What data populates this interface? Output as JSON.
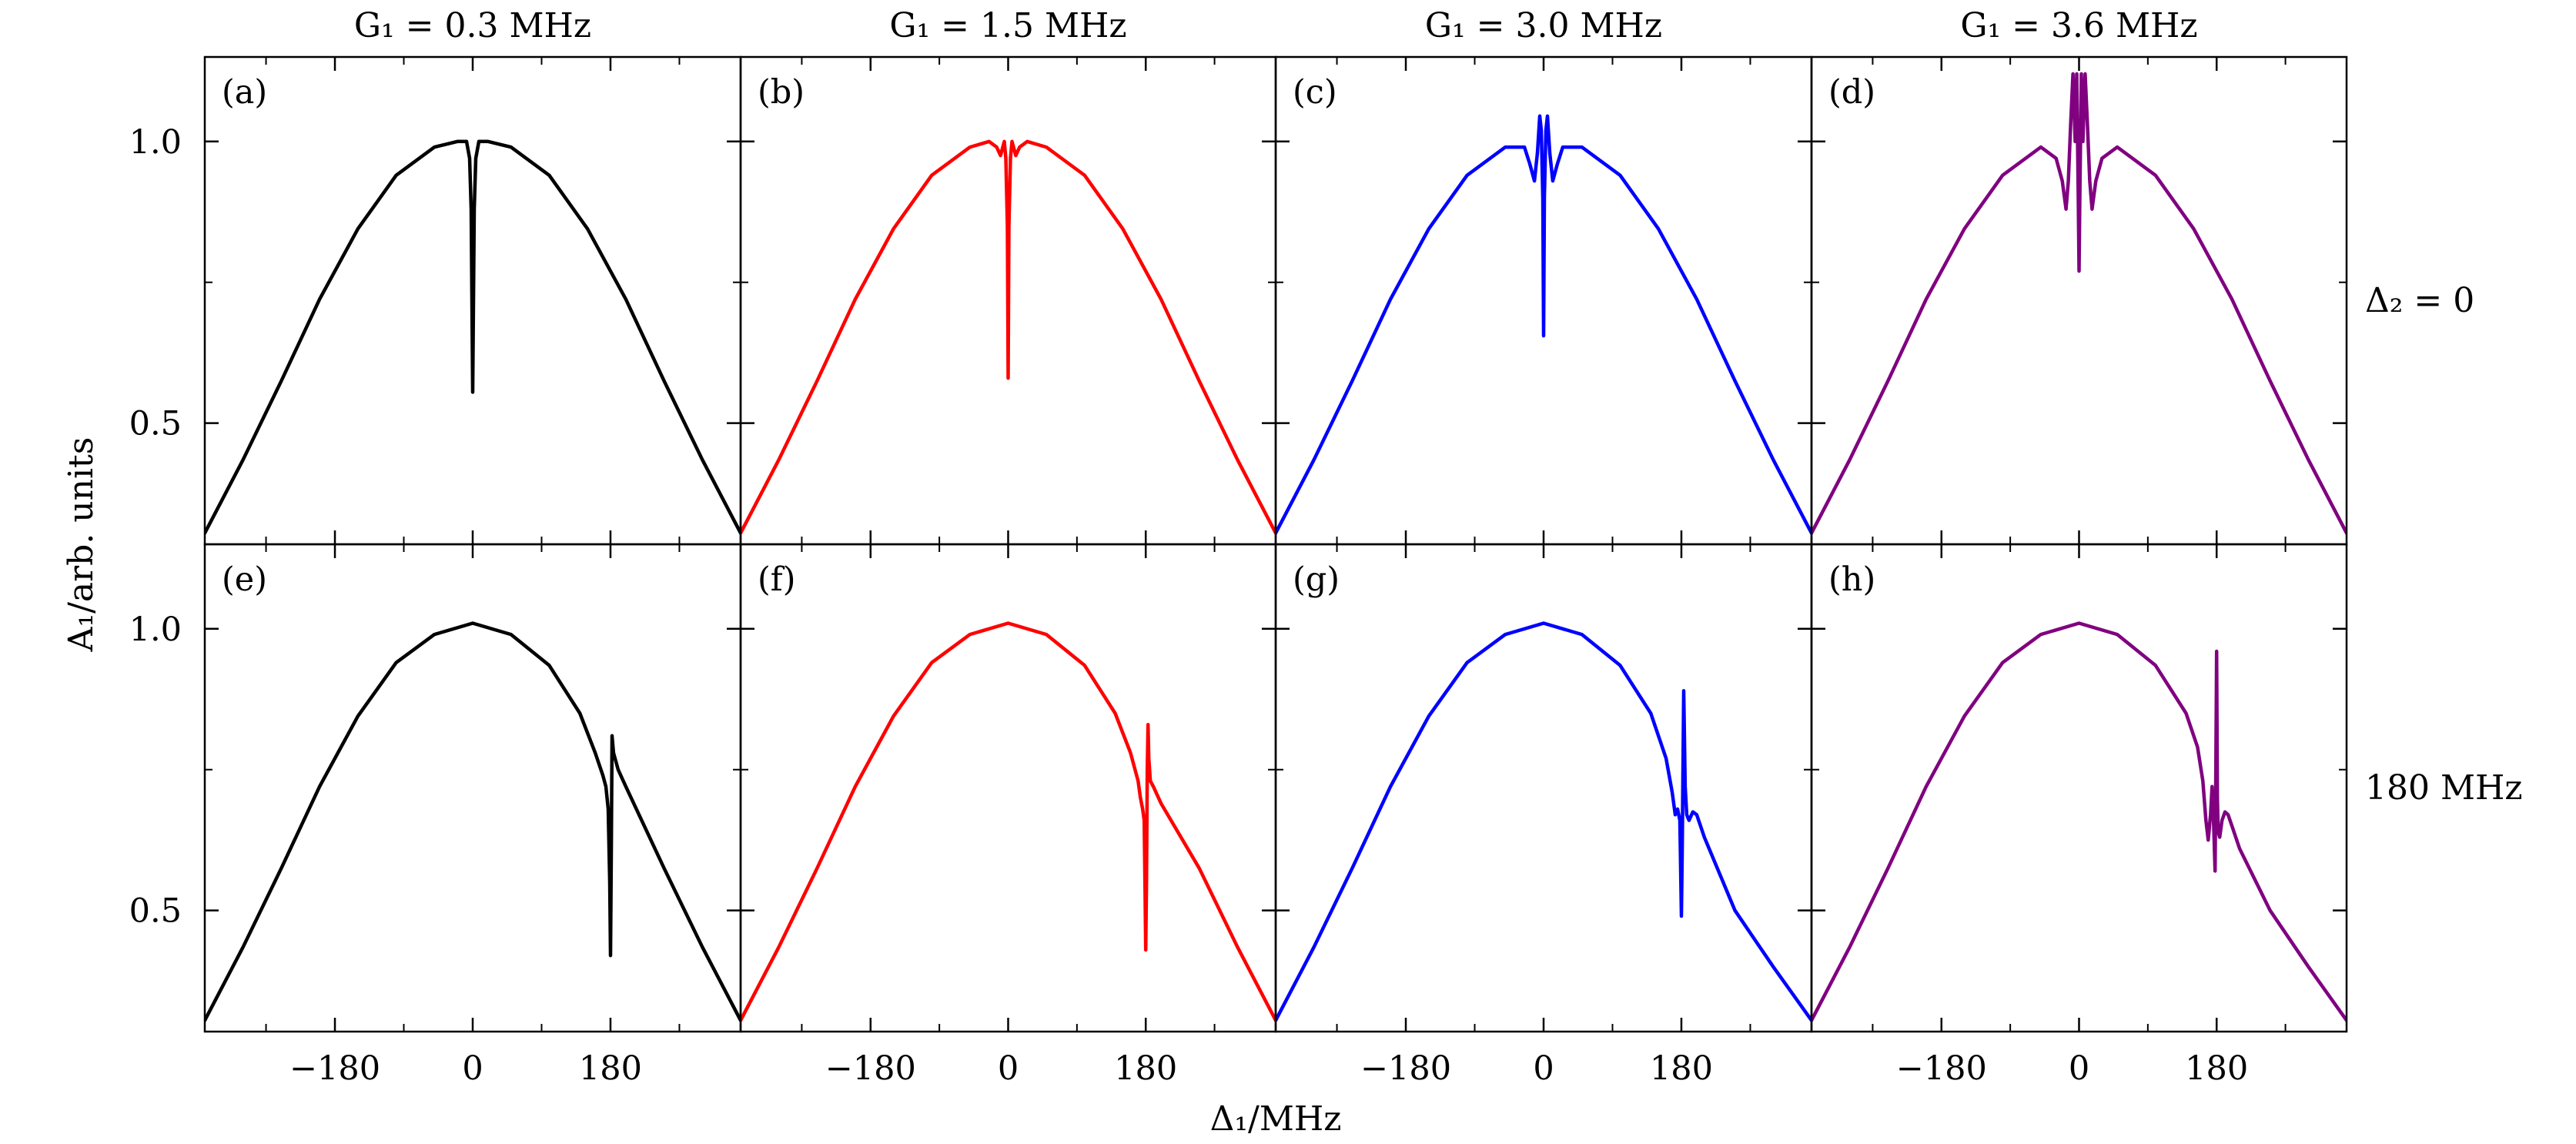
{
  "figure": {
    "column_titles": [
      "G₁ = 0.3 MHz",
      "G₁ = 1.5 MHz",
      "G₁ = 3.0 MHz",
      "G₁ = 3.6 MHz"
    ],
    "row_labels": [
      "Δ₂ = 0",
      "180 MHz"
    ],
    "ylabel": "A₁/arb. units",
    "xlabel": "Δ₁/MHz",
    "xticks": [
      -180,
      0,
      180
    ],
    "xtick_labels": [
      "−180",
      "0",
      "180"
    ],
    "yticks": [
      0.5,
      1.0
    ],
    "ytick_labels": [
      "0.5",
      "1.0"
    ]
  },
  "chart_data": [
    {
      "panel": "(a)",
      "type": "line",
      "color": "#000000",
      "xlim": [
        -350,
        350
      ],
      "ylim": [
        0.285,
        1.15
      ],
      "grid": false,
      "series": [
        {
          "x": [
            -350,
            -300,
            -250,
            -200,
            -150,
            -100,
            -50,
            -20,
            -8,
            -4,
            -2,
            0,
            2,
            4,
            8,
            20,
            50,
            100,
            150,
            200,
            250,
            300,
            350
          ],
          "y": [
            0.305,
            0.435,
            0.575,
            0.72,
            0.845,
            0.94,
            0.99,
            1.0,
            1.0,
            0.97,
            0.88,
            0.555,
            0.88,
            0.97,
            1.0,
            1.0,
            0.99,
            0.94,
            0.845,
            0.72,
            0.575,
            0.435,
            0.305
          ]
        }
      ]
    },
    {
      "panel": "(b)",
      "type": "line",
      "color": "#ff0000",
      "xlim": [
        -350,
        350
      ],
      "ylim": [
        0.285,
        1.15
      ],
      "grid": false,
      "series": [
        {
          "x": [
            -350,
            -300,
            -250,
            -200,
            -150,
            -100,
            -50,
            -25,
            -15,
            -10,
            -7,
            -5,
            -3,
            -1,
            0,
            1,
            3,
            5,
            7,
            10,
            15,
            25,
            50,
            100,
            150,
            200,
            250,
            300,
            350
          ],
          "y": [
            0.305,
            0.435,
            0.575,
            0.72,
            0.845,
            0.94,
            0.99,
            1.0,
            0.99,
            0.975,
            0.99,
            1.0,
            0.97,
            0.85,
            0.58,
            0.85,
            0.97,
            1.0,
            0.99,
            0.975,
            0.99,
            1.0,
            0.99,
            0.94,
            0.845,
            0.72,
            0.575,
            0.435,
            0.305
          ]
        }
      ]
    },
    {
      "panel": "(c)",
      "type": "line",
      "color": "#0000ff",
      "xlim": [
        -350,
        350
      ],
      "ylim": [
        0.285,
        1.15
      ],
      "grid": false,
      "series": [
        {
          "x": [
            -350,
            -300,
            -250,
            -200,
            -150,
            -100,
            -50,
            -25,
            -18,
            -12,
            -8,
            -5,
            -3,
            -1,
            0,
            1,
            3,
            5,
            8,
            12,
            18,
            25,
            50,
            100,
            150,
            200,
            250,
            300,
            350
          ],
          "y": [
            0.305,
            0.435,
            0.575,
            0.72,
            0.845,
            0.94,
            0.99,
            0.99,
            0.96,
            0.93,
            0.98,
            1.045,
            1.02,
            0.9,
            0.655,
            0.9,
            1.02,
            1.045,
            0.98,
            0.93,
            0.96,
            0.99,
            0.99,
            0.94,
            0.845,
            0.72,
            0.575,
            0.435,
            0.305
          ]
        }
      ]
    },
    {
      "panel": "(d)",
      "type": "line",
      "color": "#800080",
      "xlim": [
        -350,
        350
      ],
      "ylim": [
        0.285,
        1.15
      ],
      "grid": false,
      "series": [
        {
          "x": [
            -350,
            -300,
            -250,
            -200,
            -150,
            -100,
            -50,
            -30,
            -22,
            -17,
            -14,
            -11,
            -8,
            -5,
            -3,
            -1,
            0,
            1,
            3,
            5,
            8,
            11,
            14,
            17,
            22,
            30,
            50,
            100,
            150,
            200,
            250,
            300,
            350
          ],
          "y": [
            0.305,
            0.435,
            0.575,
            0.72,
            0.845,
            0.94,
            0.99,
            0.97,
            0.93,
            0.88,
            0.93,
            1.03,
            1.12,
            1.0,
            1.12,
            0.9,
            0.77,
            0.9,
            1.12,
            1.0,
            1.12,
            1.03,
            0.93,
            0.88,
            0.93,
            0.97,
            0.99,
            0.94,
            0.845,
            0.72,
            0.575,
            0.435,
            0.305
          ]
        }
      ]
    },
    {
      "panel": "(e)",
      "type": "line",
      "color": "#000000",
      "xlim": [
        -350,
        350
      ],
      "ylim": [
        0.285,
        1.15
      ],
      "grid": false,
      "series": [
        {
          "x": [
            -350,
            -300,
            -250,
            -200,
            -150,
            -100,
            -50,
            0,
            50,
            100,
            140,
            160,
            170,
            174,
            177,
            179,
            180,
            181,
            182,
            184,
            190,
            200,
            250,
            300,
            350
          ],
          "y": [
            0.305,
            0.435,
            0.575,
            0.72,
            0.845,
            0.94,
            0.99,
            1.01,
            0.99,
            0.935,
            0.85,
            0.78,
            0.74,
            0.72,
            0.68,
            0.55,
            0.42,
            0.6,
            0.81,
            0.78,
            0.75,
            0.72,
            0.575,
            0.435,
            0.305
          ]
        }
      ]
    },
    {
      "panel": "(f)",
      "type": "line",
      "color": "#ff0000",
      "xlim": [
        -350,
        350
      ],
      "ylim": [
        0.285,
        1.15
      ],
      "grid": false,
      "series": [
        {
          "x": [
            -350,
            -300,
            -250,
            -200,
            -150,
            -100,
            -50,
            0,
            50,
            100,
            140,
            160,
            170,
            173,
            176,
            178,
            179,
            180,
            181,
            182,
            183,
            184,
            186,
            190,
            200,
            250,
            300,
            350
          ],
          "y": [
            0.305,
            0.435,
            0.575,
            0.72,
            0.845,
            0.94,
            0.99,
            1.01,
            0.99,
            0.935,
            0.85,
            0.78,
            0.73,
            0.7,
            0.68,
            0.66,
            0.55,
            0.43,
            0.55,
            0.75,
            0.83,
            0.77,
            0.73,
            0.72,
            0.69,
            0.575,
            0.435,
            0.305
          ]
        }
      ]
    },
    {
      "panel": "(g)",
      "type": "line",
      "color": "#0000ff",
      "xlim": [
        -350,
        350
      ],
      "ylim": [
        0.285,
        1.15
      ],
      "grid": false,
      "series": [
        {
          "x": [
            -350,
            -300,
            -250,
            -200,
            -150,
            -100,
            -50,
            0,
            50,
            100,
            140,
            160,
            168,
            172,
            175,
            178,
            180,
            181,
            183,
            185,
            187,
            190,
            195,
            200,
            210,
            250,
            300,
            350
          ],
          "y": [
            0.305,
            0.435,
            0.575,
            0.72,
            0.845,
            0.94,
            0.99,
            1.01,
            0.99,
            0.935,
            0.85,
            0.77,
            0.71,
            0.67,
            0.68,
            0.66,
            0.49,
            0.6,
            0.89,
            0.72,
            0.67,
            0.66,
            0.675,
            0.67,
            0.63,
            0.5,
            0.4,
            0.305
          ]
        }
      ]
    },
    {
      "panel": "(h)",
      "type": "line",
      "color": "#800080",
      "xlim": [
        -350,
        350
      ],
      "ylim": [
        0.285,
        1.15
      ],
      "grid": false,
      "series": [
        {
          "x": [
            -350,
            -300,
            -250,
            -200,
            -150,
            -100,
            -50,
            0,
            50,
            100,
            140,
            155,
            162,
            166,
            169,
            172,
            174,
            176,
            178,
            179,
            180,
            181,
            182,
            184,
            187,
            191,
            195,
            200,
            210,
            250,
            300,
            350
          ],
          "y": [
            0.305,
            0.435,
            0.575,
            0.72,
            0.845,
            0.94,
            0.99,
            1.01,
            0.99,
            0.935,
            0.85,
            0.79,
            0.73,
            0.66,
            0.625,
            0.67,
            0.72,
            0.66,
            0.57,
            0.75,
            0.96,
            0.7,
            0.64,
            0.63,
            0.66,
            0.675,
            0.67,
            0.65,
            0.61,
            0.5,
            0.4,
            0.305
          ]
        }
      ]
    }
  ]
}
